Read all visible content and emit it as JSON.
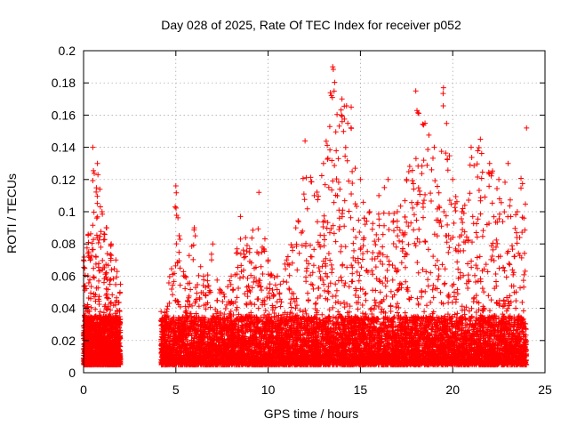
{
  "chart_data": {
    "type": "scatter",
    "title": "Day 028 of 2025, Rate Of TEC Index for receiver p052",
    "xlabel": "GPS time / hours",
    "ylabel": "ROTI / TECUs",
    "xlim": [
      0,
      25
    ],
    "ylim": [
      0,
      0.2
    ],
    "xticks": [
      0,
      5,
      10,
      15,
      20,
      25
    ],
    "yticks": [
      0,
      0.02,
      0.04,
      0.06,
      0.08,
      0.1,
      0.12,
      0.14,
      0.16,
      0.18,
      0.2
    ],
    "grid": true,
    "legend": "none",
    "marker": "plus",
    "series": [
      {
        "color": "#ff0000",
        "envelope": [
          {
            "x": 0.0,
            "y": 0.07
          },
          {
            "x": 0.25,
            "y": 0.086
          },
          {
            "x": 0.5,
            "y": 0.14
          },
          {
            "x": 0.75,
            "y": 0.13
          },
          {
            "x": 1.0,
            "y": 0.1
          },
          {
            "x": 1.25,
            "y": 0.09
          },
          {
            "x": 1.5,
            "y": 0.08
          },
          {
            "x": 1.75,
            "y": 0.07
          },
          {
            "x": 2.0,
            "y": 0.055
          },
          {
            "x": 4.2,
            "y": 0.038
          },
          {
            "x": 4.5,
            "y": 0.038
          },
          {
            "x": 5.0,
            "y": 0.116
          },
          {
            "x": 5.5,
            "y": 0.06
          },
          {
            "x": 6.0,
            "y": 0.09
          },
          {
            "x": 6.5,
            "y": 0.06
          },
          {
            "x": 7.0,
            "y": 0.08
          },
          {
            "x": 7.5,
            "y": 0.05
          },
          {
            "x": 8.0,
            "y": 0.06
          },
          {
            "x": 8.5,
            "y": 0.097
          },
          {
            "x": 9.0,
            "y": 0.077
          },
          {
            "x": 9.5,
            "y": 0.112
          },
          {
            "x": 10.0,
            "y": 0.07
          },
          {
            "x": 10.5,
            "y": 0.06
          },
          {
            "x": 11.0,
            "y": 0.07
          },
          {
            "x": 11.5,
            "y": 0.09
          },
          {
            "x": 12.0,
            "y": 0.144
          },
          {
            "x": 12.5,
            "y": 0.11
          },
          {
            "x": 13.0,
            "y": 0.13
          },
          {
            "x": 13.5,
            "y": 0.19
          },
          {
            "x": 14.0,
            "y": 0.17
          },
          {
            "x": 14.5,
            "y": 0.165
          },
          {
            "x": 15.0,
            "y": 0.12
          },
          {
            "x": 15.5,
            "y": 0.1
          },
          {
            "x": 16.0,
            "y": 0.11
          },
          {
            "x": 16.5,
            "y": 0.12
          },
          {
            "x": 17.0,
            "y": 0.1
          },
          {
            "x": 17.5,
            "y": 0.12
          },
          {
            "x": 18.0,
            "y": 0.175
          },
          {
            "x": 18.5,
            "y": 0.155
          },
          {
            "x": 19.0,
            "y": 0.14
          },
          {
            "x": 19.5,
            "y": 0.177
          },
          {
            "x": 20.0,
            "y": 0.12
          },
          {
            "x": 20.5,
            "y": 0.1
          },
          {
            "x": 21.0,
            "y": 0.14
          },
          {
            "x": 21.5,
            "y": 0.145
          },
          {
            "x": 22.0,
            "y": 0.13
          },
          {
            "x": 22.5,
            "y": 0.12
          },
          {
            "x": 23.0,
            "y": 0.13
          },
          {
            "x": 23.5,
            "y": 0.1
          },
          {
            "x": 24.0,
            "y": 0.152
          }
        ]
      }
    ]
  }
}
